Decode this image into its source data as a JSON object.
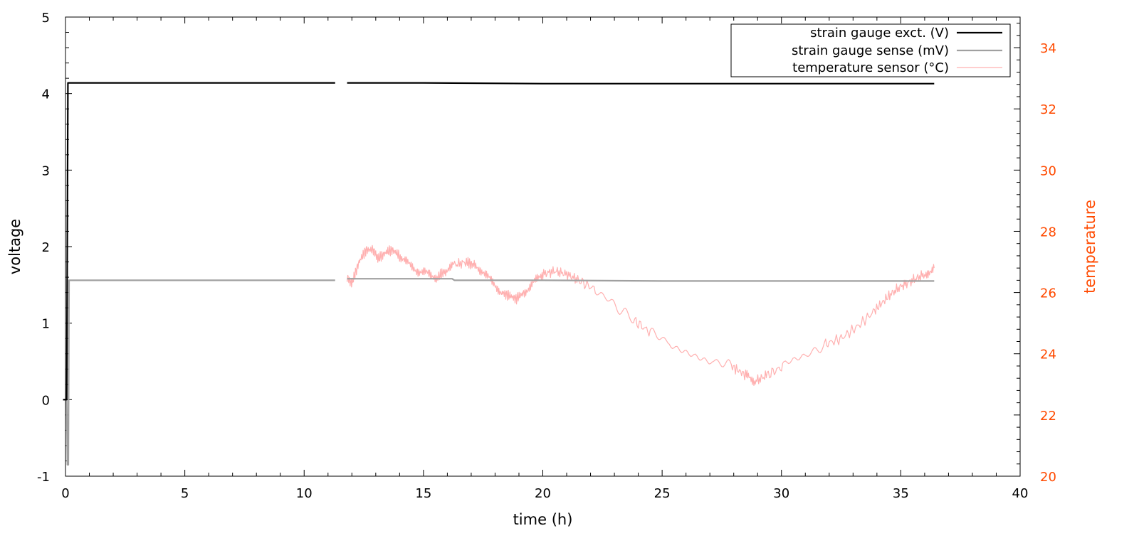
{
  "chart_data": {
    "type": "line",
    "xlabel": "time (h)",
    "ylabel_left": "voltage",
    "ylabel_right": "temperature",
    "xlim": [
      0,
      40
    ],
    "ylim_left": [
      -1,
      5
    ],
    "ylim_right": [
      20,
      35
    ],
    "x_ticks": [
      0,
      5,
      10,
      15,
      20,
      25,
      30,
      35,
      40
    ],
    "y_ticks_left": [
      -1,
      0,
      1,
      2,
      3,
      4,
      5
    ],
    "y_ticks_right": [
      20,
      22,
      24,
      26,
      28,
      30,
      32,
      34
    ],
    "grid": false,
    "legend_position": "top-right",
    "colors": {
      "excitation": "#000000",
      "sense": "#a0a0a0",
      "temperature": "#ffb0b0",
      "right_axis": "#ff4a00"
    },
    "series": [
      {
        "name": "strain gauge exct. (V)",
        "axis": "left",
        "segments": [
          [
            [
              -0.1,
              0.0
            ],
            [
              0.05,
              0.0
            ],
            [
              0.1,
              4.14
            ],
            [
              11.3,
              4.14
            ]
          ],
          [
            [
              11.8,
              4.14
            ],
            [
              15.0,
              4.14
            ],
            [
              20.0,
              4.13
            ],
            [
              25.0,
              4.13
            ],
            [
              30.0,
              4.13
            ],
            [
              36.4,
              4.13
            ]
          ]
        ]
      },
      {
        "name": "strain gauge sense (mV)",
        "axis": "left",
        "segments": [
          [
            [
              -0.1,
              0.0
            ],
            [
              0.05,
              0.0
            ],
            [
              0.08,
              -0.85
            ],
            [
              0.12,
              -0.85
            ],
            [
              0.15,
              1.56
            ],
            [
              11.3,
              1.56
            ]
          ],
          [
            [
              11.8,
              1.58
            ],
            [
              16.2,
              1.58
            ],
            [
              16.3,
              1.56
            ],
            [
              20.0,
              1.56
            ],
            [
              25.0,
              1.55
            ],
            [
              30.0,
              1.55
            ],
            [
              36.4,
              1.55
            ]
          ]
        ]
      },
      {
        "name": "temperature sensor (°C)",
        "axis": "right",
        "segments": [
          [
            [
              11.8,
              26.5
            ],
            [
              12.0,
              26.3
            ],
            [
              12.3,
              27.0
            ],
            [
              12.6,
              27.4
            ],
            [
              12.9,
              27.4
            ],
            [
              13.1,
              27.1
            ],
            [
              13.4,
              27.3
            ],
            [
              13.7,
              27.4
            ],
            [
              14.0,
              27.2
            ],
            [
              14.4,
              26.9
            ],
            [
              14.8,
              26.7
            ],
            [
              15.2,
              26.6
            ],
            [
              15.6,
              26.5
            ],
            [
              15.9,
              26.7
            ],
            [
              16.3,
              26.9
            ],
            [
              16.8,
              27.0
            ],
            [
              17.1,
              26.9
            ],
            [
              17.5,
              26.7
            ],
            [
              17.9,
              26.3
            ],
            [
              18.3,
              26.0
            ],
            [
              18.6,
              25.9
            ],
            [
              18.9,
              25.8
            ],
            [
              19.2,
              26.0
            ],
            [
              19.6,
              26.3
            ],
            [
              20.0,
              26.6
            ],
            [
              20.5,
              26.7
            ],
            [
              21.0,
              26.6
            ],
            [
              21.5,
              26.4
            ],
            [
              22.2,
              26.1
            ],
            [
              23.0,
              25.6
            ],
            [
              23.8,
              25.1
            ],
            [
              24.5,
              24.7
            ],
            [
              25.3,
              24.4
            ],
            [
              26.2,
              24.1
            ],
            [
              27.1,
              23.8
            ],
            [
              27.9,
              23.6
            ],
            [
              28.5,
              23.3
            ],
            [
              28.9,
              23.1
            ],
            [
              29.4,
              23.3
            ],
            [
              30.1,
              23.6
            ],
            [
              31.0,
              23.9
            ],
            [
              31.8,
              24.3
            ],
            [
              32.5,
              24.5
            ],
            [
              33.2,
              24.9
            ],
            [
              33.9,
              25.4
            ],
            [
              34.5,
              25.9
            ],
            [
              35.0,
              26.2
            ],
            [
              35.5,
              26.4
            ],
            [
              36.0,
              26.6
            ],
            [
              36.4,
              26.8
            ]
          ]
        ]
      }
    ]
  }
}
